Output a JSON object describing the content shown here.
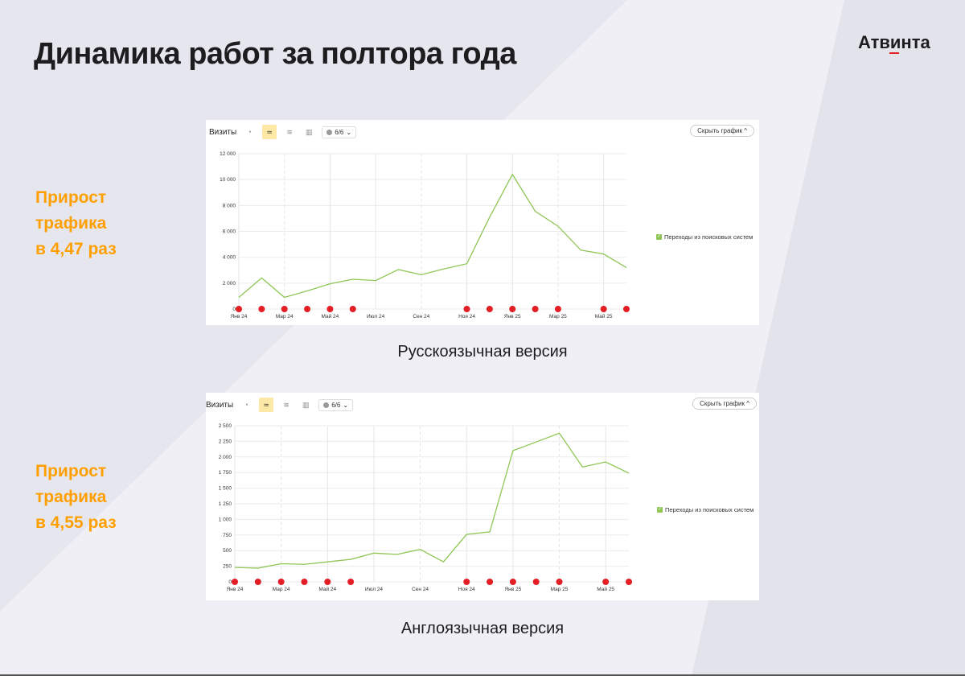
{
  "header": {
    "title": "Динамика работ за полтора года",
    "logo": "Атвинта"
  },
  "colors": {
    "accent": "#ff9f00",
    "line": "#8fc655",
    "marker": "#e31e24"
  },
  "sections": [
    {
      "growth": [
        "Прирост",
        "трафика",
        "в 4,47 раз"
      ],
      "caption": "Русскоязычная версия",
      "toolbar": {
        "title": "Визиты",
        "segments": "6/6",
        "hide": "Скрыть график"
      },
      "legend": "Переходы из поисковых систем"
    },
    {
      "growth": [
        "Прирост",
        "трафика",
        "в 4,55 раз"
      ],
      "caption": "Англоязычная версия",
      "toolbar": {
        "title": "Визиты",
        "segments": "6/6",
        "hide": "Скрыть график"
      },
      "legend": "Переходы из поисковых систем"
    }
  ],
  "chart_data": [
    {
      "type": "line",
      "title": "Визиты",
      "series": [
        {
          "name": "Переходы из поисковых систем",
          "values": [
            900,
            2400,
            900,
            1400,
            1950,
            2300,
            2200,
            3050,
            2650,
            3100,
            3500,
            7100,
            10400,
            7550,
            6400,
            4550,
            4250,
            3200
          ]
        }
      ],
      "x": [
        "Янв 24",
        "Фев 24",
        "Мар 24",
        "Апр 24",
        "Май 24",
        "Июн 24",
        "Июл 24",
        "Авг 24",
        "Сен 24",
        "Окт 24",
        "Ноя 24",
        "Дек 24",
        "Янв 25",
        "Фев 25",
        "Мар 25",
        "Апр 25",
        "Май 25",
        "Июн 25"
      ],
      "xticks": [
        "Янв 24",
        "Мар 24",
        "Май 24",
        "Июл 24",
        "Сен 24",
        "Ноя 24",
        "Янв 25",
        "Мар 25",
        "Май 25"
      ],
      "yticks": [
        "0",
        "2 000",
        "4 000",
        "6 000",
        "8 000",
        "10 000",
        "12 000"
      ],
      "ylim": [
        0,
        12000
      ],
      "grid": true,
      "legend": "right"
    },
    {
      "type": "line",
      "title": "Визиты",
      "series": [
        {
          "name": "Переходы из поисковых систем",
          "values": [
            230,
            220,
            290,
            280,
            320,
            360,
            460,
            440,
            520,
            320,
            760,
            800,
            2100,
            2240,
            2380,
            1840,
            1920,
            1740
          ]
        }
      ],
      "x": [
        "Янв 24",
        "Фев 24",
        "Мар 24",
        "Апр 24",
        "Май 24",
        "Июн 24",
        "Июл 24",
        "Авг 24",
        "Сен 24",
        "Окт 24",
        "Ноя 24",
        "Дек 24",
        "Янв 25",
        "Фев 25",
        "Мар 25",
        "Апр 25",
        "Май 25",
        "Июн 25"
      ],
      "xticks": [
        "Янв 24",
        "Мар 24",
        "Май 24",
        "Июл 24",
        "Сен 24",
        "Ноя 24",
        "Янв 25",
        "Мар 25",
        "Май 25"
      ],
      "yticks": [
        "0",
        "250",
        "500",
        "750",
        "1 000",
        "1 250",
        "1 500",
        "1 750",
        "2 000",
        "2 250",
        "2 500"
      ],
      "ylim": [
        0,
        2500
      ],
      "grid": true,
      "legend": "right"
    }
  ]
}
